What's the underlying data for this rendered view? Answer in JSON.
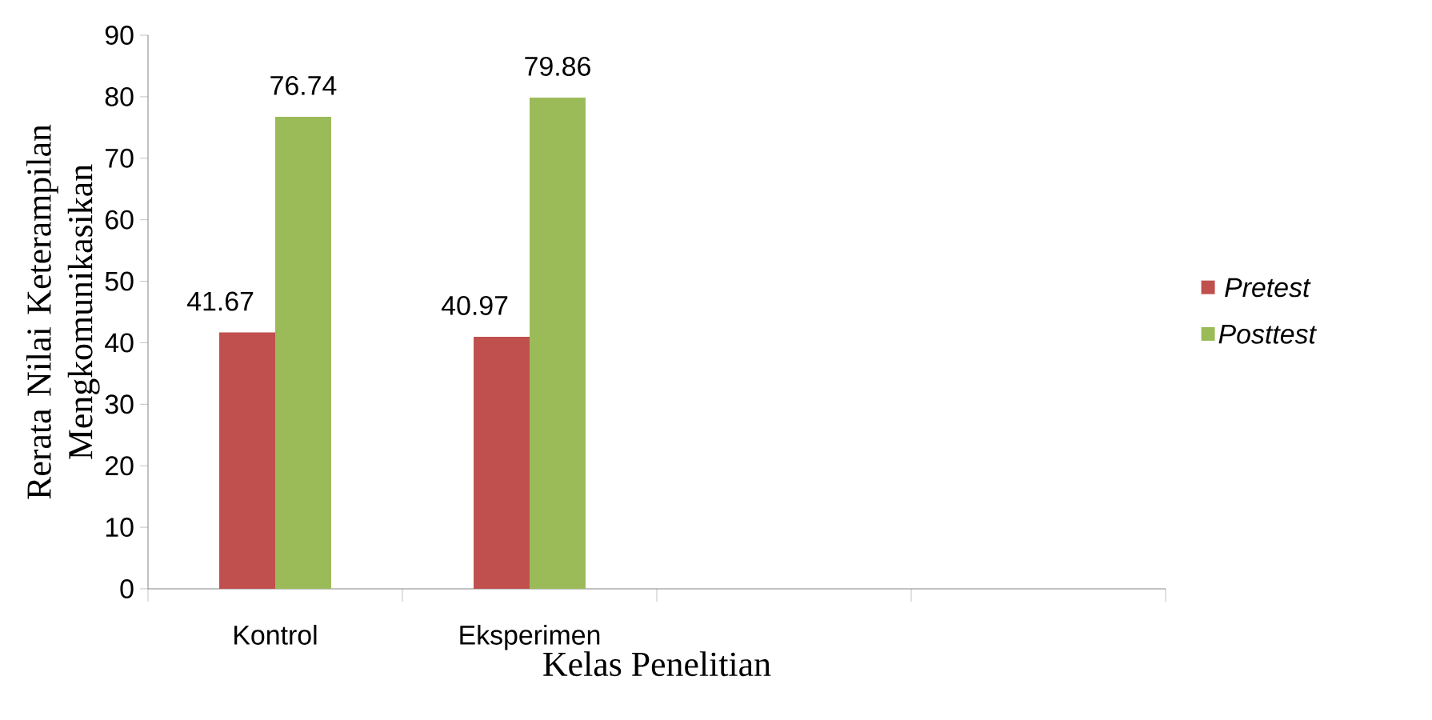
{
  "chart_data": {
    "type": "bar",
    "xlabel": "Kelas Penelitian",
    "ylabel": "Rerata Nilai Keterampilan Mengkomunikasikan",
    "categories": [
      "Kontrol",
      "Eksperimen",
      null,
      null
    ],
    "series": [
      {
        "name": "Pretest",
        "color": "#c0504d",
        "values": [
          41.67,
          40.97,
          null,
          null
        ]
      },
      {
        "name": "Posttest",
        "color": "#9bbb59",
        "values": [
          76.74,
          79.86,
          null,
          null
        ]
      }
    ],
    "ylim": [
      0,
      90
    ],
    "yticks": [
      0,
      10,
      20,
      30,
      40,
      50,
      60,
      70,
      80,
      90
    ],
    "data_labels": true,
    "legend": "right"
  }
}
